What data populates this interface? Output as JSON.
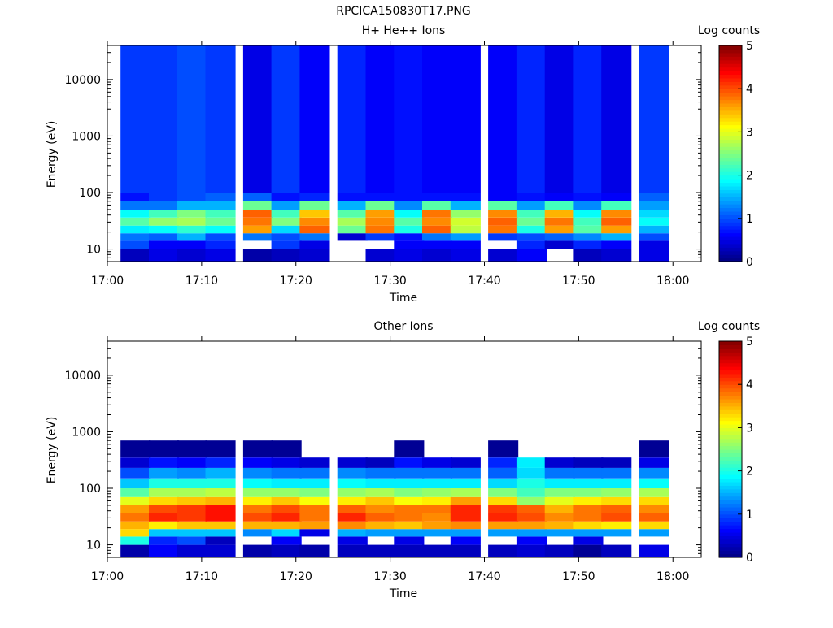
{
  "figure_title": "RPCICA150830T17.PNG",
  "chart_data": [
    {
      "type": "heatmap",
      "title": "H+ He++ Ions",
      "xlabel": "Time",
      "ylabel": "Energy (eV)",
      "x_range": [
        "17:00",
        "18:03"
      ],
      "x_ticks": [
        "17:00",
        "17:10",
        "17:20",
        "17:30",
        "17:40",
        "17:50",
        "18:00"
      ],
      "y_scale": "log",
      "y_range": [
        6,
        40000
      ],
      "y_ticks": [
        "10",
        "100",
        "1000",
        "10000"
      ],
      "colorbar": {
        "label": "Log counts",
        "min": 0,
        "max": 5,
        "ticks": [
          "0",
          "1",
          "2",
          "3",
          "4",
          "5"
        ]
      },
      "time_bins": [
        "17:03",
        "17:06",
        "17:09",
        "17:12",
        "17:16",
        "17:19",
        "17:22",
        "17:26",
        "17:29",
        "17:32",
        "17:35",
        "17:38",
        "17:42",
        "17:45",
        "17:48",
        "17:51",
        "17:54",
        "17:58"
      ],
      "band_note": "Log-count level per energy band (approximate reading)",
      "energy_bands": [
        {
          "energy_min": 6,
          "energy_max": 10,
          "values": [
            0.3,
            0.5,
            0.4,
            0.5,
            0.2,
            0.3,
            0.4,
            null,
            0.4,
            0.5,
            0.4,
            0.5,
            0.4,
            0.6,
            null,
            0.3,
            0.4,
            0.5
          ]
        },
        {
          "energy_min": 10,
          "energy_max": 14,
          "values": [
            1.0,
            0.6,
            0.6,
            0.8,
            null,
            0.9,
            0.5,
            null,
            null,
            0.6,
            0.6,
            0.6,
            null,
            0.8,
            0.4,
            0.8,
            0.6,
            0.5
          ]
        },
        {
          "energy_min": 14,
          "energy_max": 19,
          "values": [
            1.2,
            1.1,
            1.5,
            1.0,
            1.2,
            1.0,
            1.2,
            0.4,
            0.9,
            0.7,
            1.2,
            1.4,
            0.9,
            1.0,
            1.1,
            1.3,
            1.5,
            1.0
          ]
        },
        {
          "energy_min": 19,
          "energy_max": 26,
          "values": [
            1.8,
            1.9,
            2.1,
            1.9,
            3.6,
            1.7,
            3.9,
            2.4,
            3.8,
            2.0,
            3.9,
            2.8,
            3.8,
            2.0,
            3.6,
            2.3,
            3.6,
            1.5
          ]
        },
        {
          "energy_min": 26,
          "energy_max": 36,
          "values": [
            2.3,
            2.6,
            2.7,
            2.4,
            3.8,
            2.5,
            3.7,
            2.7,
            3.7,
            2.3,
            3.7,
            2.9,
            3.9,
            2.4,
            3.8,
            2.2,
            3.9,
            1.9
          ]
        },
        {
          "energy_min": 36,
          "energy_max": 50,
          "values": [
            1.9,
            2.2,
            2.5,
            2.2,
            3.9,
            2.2,
            3.4,
            2.3,
            3.6,
            1.9,
            3.8,
            2.6,
            3.7,
            2.2,
            3.5,
            1.9,
            3.7,
            1.7
          ]
        },
        {
          "energy_min": 50,
          "energy_max": 70,
          "values": [
            1.2,
            1.2,
            1.5,
            1.5,
            2.4,
            1.4,
            2.4,
            1.5,
            2.4,
            1.3,
            2.3,
            1.5,
            2.3,
            1.4,
            2.2,
            1.3,
            2.2,
            1.4
          ]
        },
        {
          "energy_min": 70,
          "energy_max": 100,
          "values": [
            0.7,
            0.9,
            1.0,
            1.1,
            1.1,
            0.7,
            0.8,
            0.7,
            0.7,
            0.7,
            0.7,
            0.7,
            0.6,
            0.7,
            0.6,
            0.7,
            0.6,
            1.1
          ]
        },
        {
          "energy_min": 100,
          "energy_max": 45000,
          "values": [
            0.9,
            0.9,
            1.0,
            0.9,
            0.5,
            0.9,
            0.6,
            0.8,
            0.6,
            0.7,
            0.6,
            0.6,
            0.6,
            0.8,
            0.5,
            0.8,
            0.5,
            0.9
          ]
        }
      ]
    },
    {
      "type": "heatmap",
      "title": "Other Ions",
      "xlabel": "Time",
      "ylabel": "Energy (eV)",
      "x_range": [
        "17:00",
        "18:03"
      ],
      "x_ticks": [
        "17:00",
        "17:10",
        "17:20",
        "17:30",
        "17:40",
        "17:50",
        "18:00"
      ],
      "y_scale": "log",
      "y_range": [
        6,
        40000
      ],
      "y_ticks": [
        "10",
        "100",
        "1000",
        "10000"
      ],
      "colorbar": {
        "label": "Log counts",
        "min": 0,
        "max": 5,
        "ticks": [
          "0",
          "1",
          "2",
          "3",
          "4",
          "5"
        ]
      },
      "time_bins": [
        "17:03",
        "17:06",
        "17:09",
        "17:12",
        "17:16",
        "17:19",
        "17:22",
        "17:26",
        "17:29",
        "17:32",
        "17:35",
        "17:38",
        "17:42",
        "17:45",
        "17:48",
        "17:51",
        "17:54",
        "17:58"
      ],
      "band_note": "Log-count level per energy band (approximate reading)",
      "energy_bands": [
        {
          "energy_min": 6,
          "energy_max": 10,
          "values": [
            0.2,
            0.6,
            0.4,
            0.4,
            0.2,
            0.3,
            0.2,
            0.3,
            0.3,
            0.3,
            0.3,
            0.3,
            0.3,
            0.4,
            0.3,
            0.1,
            0.3,
            0.5
          ]
        },
        {
          "energy_min": 10,
          "energy_max": 14,
          "values": [
            2.0,
            0.8,
            1.0,
            0.3,
            null,
            0.6,
            null,
            0.5,
            null,
            0.5,
            null,
            0.6,
            null,
            0.6,
            null,
            0.5,
            null,
            null
          ]
        },
        {
          "energy_min": 14,
          "energy_max": 19,
          "values": [
            3.3,
            1.6,
            1.6,
            1.6,
            1.3,
            1.7,
            0.5,
            1.5,
            1.4,
            1.4,
            1.4,
            1.4,
            1.4,
            1.4,
            1.4,
            1.4,
            1.4,
            1.4
          ]
        },
        {
          "energy_min": 19,
          "energy_max": 26,
          "values": [
            3.5,
            3.2,
            3.4,
            3.4,
            3.5,
            3.5,
            3.6,
            3.7,
            3.5,
            3.4,
            3.6,
            3.7,
            3.6,
            3.6,
            3.5,
            3.3,
            3.2,
            3.3
          ]
        },
        {
          "energy_min": 26,
          "energy_max": 36,
          "values": [
            3.8,
            4.2,
            4.1,
            4.3,
            4.0,
            4.2,
            3.8,
            4.2,
            3.9,
            3.8,
            3.7,
            4.2,
            4.2,
            4.0,
            3.7,
            3.8,
            4.0,
            3.9
          ]
        },
        {
          "energy_min": 36,
          "energy_max": 50,
          "values": [
            3.6,
            4.0,
            4.1,
            4.3,
            3.8,
            4.0,
            3.8,
            3.9,
            3.7,
            3.8,
            3.8,
            4.2,
            4.1,
            3.9,
            3.5,
            3.8,
            3.9,
            3.7
          ]
        },
        {
          "energy_min": 50,
          "energy_max": 70,
          "values": [
            3.0,
            3.3,
            3.4,
            3.5,
            3.2,
            3.4,
            3.1,
            3.2,
            3.4,
            3.1,
            3.2,
            3.6,
            3.3,
            2.6,
            3.0,
            3.2,
            3.3,
            3.3
          ]
        },
        {
          "energy_min": 70,
          "energy_max": 100,
          "values": [
            2.3,
            2.7,
            2.7,
            2.8,
            2.6,
            2.6,
            2.5,
            2.6,
            2.7,
            2.5,
            2.6,
            2.7,
            2.5,
            2.2,
            2.5,
            2.5,
            2.6,
            2.7
          ]
        },
        {
          "energy_min": 100,
          "energy_max": 150,
          "values": [
            1.6,
            2.0,
            2.0,
            2.0,
            1.9,
            1.8,
            1.8,
            1.9,
            1.8,
            1.8,
            1.8,
            1.8,
            1.7,
            2.0,
            1.8,
            1.8,
            1.8,
            1.9
          ]
        },
        {
          "energy_min": 150,
          "energy_max": 230,
          "values": [
            1.0,
            1.4,
            1.3,
            1.5,
            1.3,
            1.2,
            1.2,
            1.3,
            1.2,
            1.2,
            1.2,
            1.2,
            1.1,
            1.7,
            1.2,
            1.2,
            1.2,
            1.3
          ]
        },
        {
          "energy_min": 230,
          "energy_max": 350,
          "values": [
            0.4,
            0.7,
            0.6,
            0.8,
            0.6,
            0.5,
            0.4,
            0.4,
            0.3,
            0.7,
            0.5,
            0.4,
            0.8,
            1.8,
            0.4,
            0.3,
            0.3,
            0.5
          ]
        },
        {
          "energy_min": 350,
          "energy_max": 700,
          "values": [
            0.1,
            0.1,
            0.1,
            0.1,
            0.1,
            0.1,
            null,
            null,
            null,
            0.1,
            null,
            null,
            0.1,
            null,
            null,
            null,
            null,
            0.1
          ]
        }
      ]
    }
  ]
}
